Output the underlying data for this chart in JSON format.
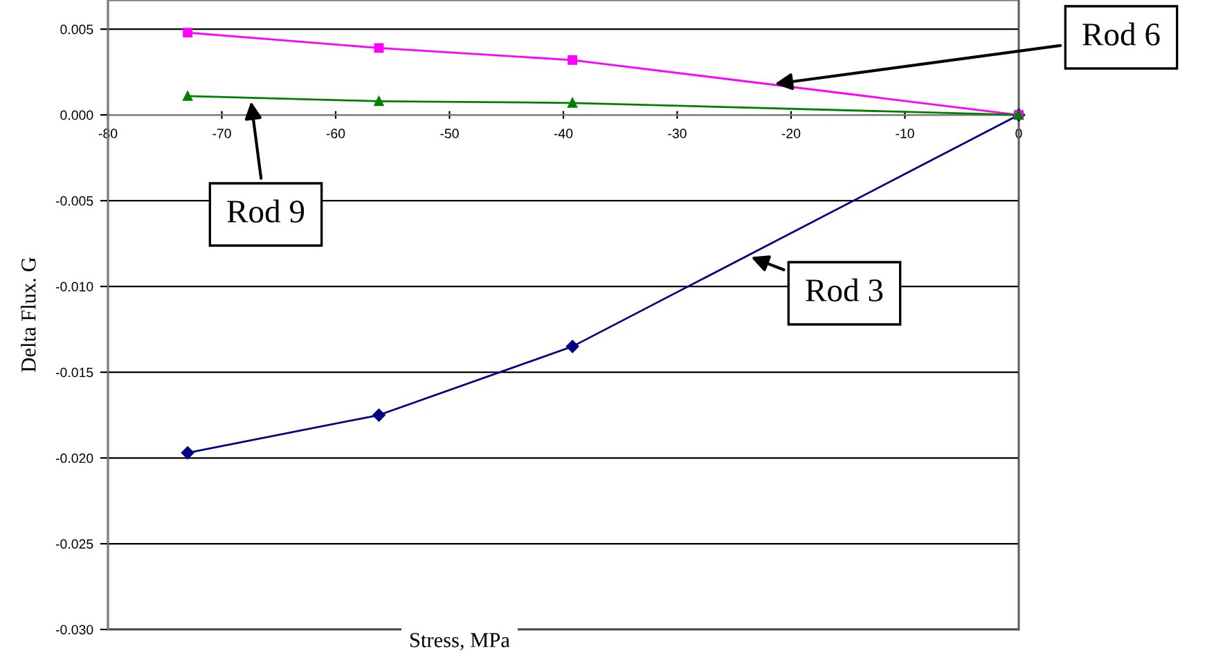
{
  "chart_data": {
    "type": "line",
    "xlabel": "Stress, MPa",
    "ylabel": "Delta Flux. G",
    "xlim": [
      -80,
      0
    ],
    "xticks": [
      -80,
      -70,
      -60,
      -50,
      -40,
      -30,
      -20,
      -10,
      0
    ],
    "ylim": [
      -0.03,
      0.0067
    ],
    "yticks": [
      {
        "value": -0.03,
        "label": "-0.030"
      },
      -0.025,
      {
        "value": -0.02,
        "label": "-0.020"
      },
      -0.015,
      {
        "value": -0.01,
        "label": "-0.010"
      },
      -0.005,
      {
        "value": 0,
        "label": "0.000"
      },
      0.005
    ],
    "grid": "y",
    "series": [
      {
        "name": "Rod 3",
        "color": "#000080",
        "marker": "diamond",
        "x": [
          -73.0,
          -56.2,
          -39.2,
          0
        ],
        "values": [
          -0.0197,
          -0.0175,
          -0.0135,
          0
        ]
      },
      {
        "name": "Rod 6",
        "color": "#ff00ff",
        "marker": "square",
        "x": [
          -73.0,
          -56.2,
          -39.2,
          0
        ],
        "values": [
          0.0048,
          0.0039,
          0.0032,
          0
        ]
      },
      {
        "name": "Rod 9",
        "color": "#008000",
        "marker": "triangle",
        "x": [
          -73.0,
          -56.2,
          -39.2,
          0
        ],
        "values": [
          0.0011,
          0.0008,
          0.0007,
          0
        ]
      }
    ]
  }
}
